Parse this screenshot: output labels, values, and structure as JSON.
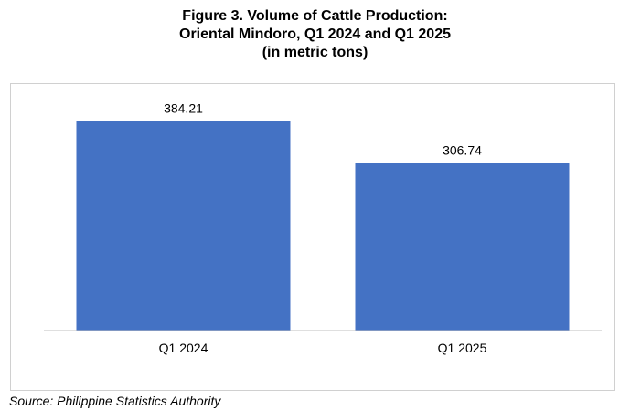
{
  "title_lines": [
    "Figure 3. Volume of Cattle Production:",
    "Oriental Mindoro, Q1 2024 and Q1 2025",
    "(in metric tons)"
  ],
  "source": "Source: Philippine Statistics Authority",
  "colors": {
    "bar": "#4472c4",
    "axis": "#bfbfbf",
    "frame": "#d0d0d0"
  },
  "chart_data": {
    "type": "bar",
    "title": "Figure 3. Volume of Cattle Production: Oriental Mindoro, Q1 2024 and Q1 2025 (in metric tons)",
    "categories": [
      "Q1 2024",
      "Q1 2025"
    ],
    "values": [
      384.21,
      306.74
    ],
    "data_labels": [
      "384.21",
      "306.74"
    ],
    "xlabel": "",
    "ylabel": "",
    "ylim": [
      0,
      450
    ],
    "grid": false,
    "legend": "none"
  }
}
